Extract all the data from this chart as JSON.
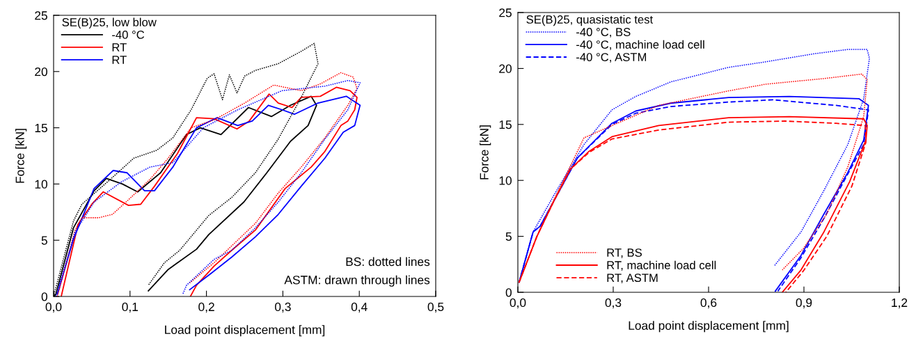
{
  "chart_data": [
    {
      "type": "line",
      "xlabel": "Load point displacement [mm]",
      "ylabel": "Force [kN]",
      "legend_title": "SE(B)25, low blow",
      "legend": "top left",
      "grid": false,
      "marker": "none",
      "xlim": [
        0,
        0.5
      ],
      "xticks": [
        {
          "value": 0,
          "label": "0,0"
        },
        {
          "value": 0.1,
          "label": "0,1"
        },
        {
          "value": 0.2,
          "label": "0,2"
        },
        {
          "value": 0.3,
          "label": "0,3"
        },
        {
          "value": 0.4,
          "label": "0,4"
        },
        {
          "value": 0.5,
          "label": "0,5"
        }
      ],
      "ylim": [
        0,
        25
      ],
      "yticks": [
        0,
        5,
        10,
        15,
        20,
        25
      ],
      "annotations": [
        "BS: dotted lines",
        "ASTM: drawn through lines"
      ],
      "series": [
        {
          "name": "-40 °C",
          "color": "#000000",
          "line_style": "solid",
          "x": [
            0.0,
            0.003,
            0.026,
            0.053,
            0.069,
            0.09,
            0.11,
            0.14,
            0.174,
            0.192,
            0.219,
            0.255,
            0.285,
            0.31,
            0.337,
            0.344,
            0.333,
            0.31,
            0.279,
            0.249,
            0.203,
            0.187,
            0.15,
            0.124
          ],
          "values": [
            0,
            0.2,
            6.1,
            9.4,
            10.5,
            10.0,
            9.3,
            11.0,
            14.4,
            15.0,
            14.4,
            16.8,
            16.0,
            17.0,
            17.8,
            17.0,
            15.2,
            13.8,
            11.0,
            8.4,
            5.5,
            4.2,
            2.4,
            0.5
          ]
        },
        {
          "name": "RT",
          "color": "#ff0000",
          "line_style": "solid",
          "x": [
            0.01,
            0.032,
            0.05,
            0.065,
            0.098,
            0.114,
            0.132,
            0.162,
            0.187,
            0.21,
            0.24,
            0.256,
            0.282,
            0.294,
            0.312,
            0.324,
            0.349,
            0.37,
            0.388,
            0.397,
            0.394,
            0.385,
            0.376,
            0.355,
            0.337,
            0.303,
            0.264,
            0.233,
            0.21,
            0.187,
            0.179
          ],
          "values": [
            0,
            6.4,
            8.2,
            9.3,
            8.1,
            8.2,
            9.8,
            12.7,
            15.9,
            15.8,
            14.9,
            15.6,
            18.0,
            17.2,
            16.8,
            17.7,
            17.8,
            18.6,
            18.3,
            17.7,
            16.6,
            15.6,
            15.2,
            12.9,
            11.5,
            9.6,
            5.9,
            4.1,
            2.7,
            1.0,
            0
          ]
        },
        {
          "name": "RT",
          "color": "#0000ff",
          "line_style": "solid",
          "x": [
            0.005,
            0.026,
            0.053,
            0.078,
            0.096,
            0.119,
            0.132,
            0.156,
            0.187,
            0.214,
            0.241,
            0.26,
            0.281,
            0.299,
            0.315,
            0.346,
            0.383,
            0.401,
            0.394,
            0.379,
            0.355,
            0.324,
            0.294,
            0.264,
            0.233,
            0.205,
            0.178
          ],
          "values": [
            0.2,
            5.1,
            9.6,
            11.2,
            11.0,
            9.4,
            9.4,
            11.5,
            15.0,
            15.9,
            15.2,
            15.6,
            17.0,
            16.6,
            16.2,
            17.2,
            17.8,
            17.0,
            15.2,
            14.6,
            12.3,
            9.8,
            7.3,
            5.3,
            3.5,
            2.0,
            0.6
          ]
        },
        {
          "color": "#000000",
          "line_style": "dotted",
          "x": [
            0.0,
            0.026,
            0.037,
            0.074,
            0.105,
            0.135,
            0.156,
            0.18,
            0.201,
            0.21,
            0.221,
            0.23,
            0.24,
            0.25,
            0.264,
            0.294,
            0.324,
            0.341,
            0.346,
            0.324,
            0.294,
            0.264,
            0.233,
            0.203,
            0.165,
            0.145,
            0.124
          ],
          "values": [
            0,
            6.7,
            8.2,
            10.4,
            12.3,
            13.0,
            14.1,
            16.6,
            19.4,
            19.8,
            17.5,
            19.7,
            18.1,
            19.6,
            20.1,
            20.7,
            21.8,
            22.5,
            20.7,
            17.7,
            14.0,
            11.0,
            8.8,
            7.2,
            4.1,
            3.0,
            1.0
          ]
        },
        {
          "color": "#ff0000",
          "line_style": "dotted",
          "x": [
            0.005,
            0.028,
            0.037,
            0.059,
            0.077,
            0.098,
            0.126,
            0.15,
            0.18,
            0.21,
            0.25,
            0.288,
            0.324,
            0.349,
            0.376,
            0.392,
            0.397,
            0.385,
            0.355,
            0.324,
            0.294,
            0.264,
            0.233,
            0.21,
            0.178
          ],
          "values": [
            0,
            5.9,
            7.0,
            7.0,
            7.3,
            8.6,
            10.4,
            12.3,
            15.0,
            15.7,
            17.2,
            18.8,
            18.3,
            18.9,
            19.9,
            19.5,
            18.5,
            17.0,
            14.1,
            11.5,
            9.2,
            6.5,
            4.5,
            3.0,
            1.2
          ]
        },
        {
          "color": "#0000ff",
          "line_style": "dotted",
          "x": [
            0.003,
            0.028,
            0.053,
            0.089,
            0.126,
            0.156,
            0.196,
            0.241,
            0.299,
            0.355,
            0.385,
            0.401,
            0.385,
            0.355,
            0.324,
            0.294,
            0.264,
            0.233,
            0.21,
            0.174,
            0.169
          ],
          "values": [
            0,
            5.7,
            8.4,
            10.2,
            11.5,
            11.9,
            15.0,
            16.6,
            18.3,
            18.7,
            19.2,
            19.0,
            16.6,
            14.0,
            11.0,
            8.4,
            6.1,
            4.1,
            3.3,
            1.0,
            0.2
          ]
        }
      ]
    },
    {
      "type": "line",
      "xlabel": "Load point displacement [mm]",
      "ylabel": "Force [kN]",
      "legend_title": "SE(B)25, quasistatic test",
      "legend": [
        "top left",
        "bottom left"
      ],
      "grid": false,
      "marker": "none",
      "xlim": [
        0,
        1.2
      ],
      "xticks": [
        {
          "value": 0,
          "label": "0,0"
        },
        {
          "value": 0.3,
          "label": "0,3"
        },
        {
          "value": 0.6,
          "label": "0,6"
        },
        {
          "value": 0.9,
          "label": "0,9"
        },
        {
          "value": 1.2,
          "label": "1,2"
        }
      ],
      "ylim": [
        0,
        25
      ],
      "yticks": [
        0,
        5,
        10,
        15,
        20,
        25
      ],
      "series": [
        {
          "name": "-40 °C, BS",
          "color": "#0000ff",
          "line_style": "dotted",
          "x": [
            0.004,
            0.048,
            0.114,
            0.208,
            0.296,
            0.371,
            0.481,
            0.663,
            0.781,
            0.928,
            1.038,
            1.099,
            1.106,
            1.088,
            1.038,
            0.963,
            0.891,
            0.808
          ],
          "values": [
            0.9,
            5.4,
            8.7,
            13.2,
            16.3,
            17.5,
            18.8,
            20.1,
            20.6,
            21.3,
            21.7,
            21.7,
            20.9,
            17.3,
            13.2,
            9.1,
            5.4,
            2.4
          ]
        },
        {
          "name": "-40 °C, machine load cell",
          "color": "#0000ff",
          "line_style": "solid",
          "x": [
            0.004,
            0.048,
            0.07,
            0.114,
            0.187,
            0.296,
            0.371,
            0.481,
            0.663,
            0.854,
            1.073,
            1.103,
            1.088,
            1.038,
            0.963,
            0.891,
            0.81
          ],
          "values": [
            0.9,
            5.4,
            5.9,
            8.2,
            12.0,
            15.1,
            16.2,
            16.9,
            17.4,
            17.5,
            17.3,
            16.7,
            13.6,
            10.7,
            7.0,
            3.3,
            0.1
          ]
        },
        {
          "name": "-40 °C, ASTM",
          "color": "#0000ff",
          "line_style": "dashed",
          "x": [
            0.004,
            0.048,
            0.07,
            0.114,
            0.187,
            0.296,
            0.371,
            0.481,
            0.663,
            0.803,
            1.001,
            1.103,
            1.088,
            1.029,
            0.963,
            0.891,
            0.818
          ],
          "values": [
            0.9,
            5.4,
            5.9,
            8.2,
            12.0,
            15.0,
            16.0,
            16.6,
            17.0,
            17.2,
            16.7,
            16.3,
            13.2,
            10.1,
            6.6,
            3.1,
            0.1
          ]
        },
        {
          "name": "RT, BS",
          "color": "#ff0000",
          "line_style": "dotted",
          "x": [
            0.004,
            0.06,
            0.114,
            0.208,
            0.296,
            0.443,
            0.663,
            0.781,
            0.963,
            1.082,
            1.099,
            1.088,
            1.038,
            0.972,
            0.898,
            0.832
          ],
          "values": [
            0.9,
            5.0,
            8.3,
            13.8,
            14.9,
            16.7,
            18.0,
            18.6,
            19.1,
            19.5,
            19.0,
            15.7,
            11.2,
            7.0,
            3.9,
            2.0
          ]
        },
        {
          "name": "RT, machine load cell",
          "color": "#ff0000",
          "line_style": "solid",
          "x": [
            0.004,
            0.06,
            0.114,
            0.165,
            0.224,
            0.296,
            0.443,
            0.663,
            0.854,
            1.088,
            1.099,
            1.095,
            1.044,
            0.963,
            0.891,
            0.832
          ],
          "values": [
            0.9,
            5.0,
            8.2,
            11.0,
            12.6,
            13.9,
            14.9,
            15.6,
            15.7,
            15.5,
            14.9,
            13.6,
            9.9,
            5.4,
            2.0,
            0
          ]
        },
        {
          "name": "RT, ASTM",
          "color": "#ff0000",
          "line_style": "dashed",
          "x": [
            0.004,
            0.06,
            0.114,
            0.165,
            0.224,
            0.296,
            0.443,
            0.663,
            0.84,
            1.001,
            1.093,
            1.095,
            1.051,
            0.972,
            0.898,
            0.843
          ],
          "values": [
            0.9,
            5.0,
            8.2,
            11.0,
            12.5,
            13.7,
            14.5,
            15.2,
            15.3,
            15.1,
            14.9,
            13.4,
            9.5,
            5.0,
            1.9,
            0
          ]
        }
      ]
    }
  ]
}
